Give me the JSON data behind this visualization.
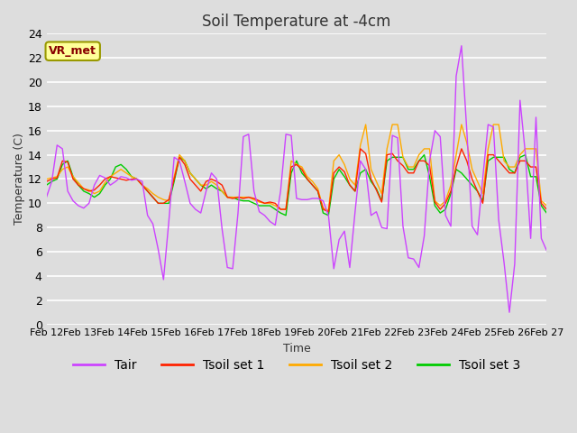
{
  "title": "Soil Temperature at -4cm",
  "xlabel": "Time",
  "ylabel": "Temperature (C)",
  "ylim": [
    0,
    24
  ],
  "yticks": [
    0,
    2,
    4,
    6,
    8,
    10,
    12,
    14,
    16,
    18,
    20,
    22,
    24
  ],
  "x_labels": [
    "Feb 12",
    "Feb 13",
    "Feb 14",
    "Feb 15",
    "Feb 16",
    "Feb 17",
    "Feb 18",
    "Feb 19",
    "Feb 20",
    "Feb 21",
    "Feb 22",
    "Feb 23",
    "Feb 24",
    "Feb 25",
    "Feb 26",
    "Feb 27"
  ],
  "annotation_text": "VR_met",
  "annotation_color": "#880000",
  "annotation_bg": "#ffff99",
  "annotation_edge": "#999900",
  "line_colors": {
    "Tair": "#cc44ff",
    "Tsoil set 1": "#ff2200",
    "Tsoil set 2": "#ffaa00",
    "Tsoil set 3": "#00cc00"
  },
  "bg_color": "#dddddd",
  "plot_bg": "#dddddd",
  "grid_color": "#ffffff",
  "title_fontsize": 12,
  "tick_fontsize": 9,
  "legend_fontsize": 10,
  "Tair": [
    10.5,
    11.8,
    14.8,
    14.5,
    11.0,
    10.2,
    9.8,
    9.6,
    10.0,
    11.5,
    12.3,
    12.1,
    11.5,
    11.8,
    12.2,
    12.1,
    11.9,
    12.0,
    11.8,
    9.0,
    8.3,
    6.2,
    3.7,
    8.5,
    13.8,
    13.5,
    11.8,
    10.0,
    9.5,
    9.2,
    11.0,
    12.5,
    12.0,
    7.9,
    4.7,
    4.6,
    9.2,
    15.5,
    15.7,
    11.0,
    9.3,
    9.0,
    8.5,
    8.2,
    11.0,
    15.7,
    15.6,
    10.4,
    10.3,
    10.3,
    10.4,
    10.4,
    10.2,
    9.0,
    4.6,
    7.0,
    7.7,
    4.7,
    9.3,
    13.5,
    12.8,
    9.0,
    9.3,
    8.0,
    7.9,
    15.6,
    15.4,
    8.1,
    5.5,
    5.4,
    4.7,
    7.3,
    13.5,
    16.0,
    15.5,
    9.0,
    8.1,
    20.5,
    23.0,
    16.0,
    8.1,
    7.4,
    12.1,
    16.5,
    16.3,
    8.6,
    5.1,
    1.0,
    5.0,
    18.5,
    14.1,
    7.1,
    17.1,
    7.1,
    6.1
  ],
  "Tsoil1": [
    11.8,
    12.0,
    12.1,
    13.5,
    13.4,
    12.0,
    11.5,
    11.2,
    11.0,
    11.1,
    11.5,
    12.0,
    12.2,
    12.1,
    12.0,
    11.9,
    12.0,
    12.0,
    11.5,
    11.0,
    10.5,
    10.0,
    10.0,
    10.3,
    12.0,
    13.8,
    13.2,
    12.0,
    11.5,
    11.0,
    11.8,
    12.0,
    11.8,
    11.5,
    10.5,
    10.4,
    10.5,
    10.4,
    10.5,
    10.4,
    10.2,
    10.0,
    10.1,
    10.0,
    9.5,
    9.5,
    13.0,
    13.2,
    12.8,
    12.0,
    11.5,
    11.0,
    9.5,
    9.3,
    12.5,
    13.0,
    12.6,
    11.5,
    11.0,
    14.5,
    14.1,
    12.0,
    11.1,
    10.1,
    14.0,
    14.1,
    13.5,
    13.1,
    12.5,
    12.5,
    13.5,
    13.5,
    13.1,
    10.1,
    9.5,
    10.0,
    11.0,
    13.0,
    14.5,
    13.5,
    12.0,
    11.0,
    10.0,
    14.0,
    14.0,
    13.5,
    13.0,
    12.5,
    12.5,
    13.5,
    13.5,
    13.0,
    13.0,
    10.0,
    9.5
  ],
  "Tsoil2": [
    12.0,
    12.1,
    12.2,
    12.8,
    13.0,
    12.2,
    11.7,
    11.2,
    11.1,
    10.8,
    11.0,
    11.7,
    12.2,
    12.5,
    12.8,
    12.5,
    12.2,
    12.0,
    11.5,
    11.2,
    10.8,
    10.5,
    10.3,
    10.2,
    12.2,
    14.0,
    13.5,
    12.5,
    12.0,
    11.5,
    11.5,
    11.8,
    11.5,
    11.0,
    10.5,
    10.5,
    10.5,
    10.5,
    10.5,
    10.3,
    10.1,
    10.0,
    10.0,
    9.8,
    9.5,
    9.5,
    13.5,
    13.2,
    13.0,
    12.2,
    11.8,
    11.2,
    9.6,
    9.4,
    13.5,
    14.0,
    13.2,
    12.0,
    11.5,
    14.8,
    16.5,
    12.8,
    11.8,
    10.8,
    14.5,
    16.5,
    16.5,
    13.8,
    13.0,
    13.0,
    14.0,
    14.5,
    14.5,
    10.2,
    9.8,
    10.2,
    11.5,
    14.0,
    16.5,
    15.0,
    12.8,
    11.8,
    10.8,
    14.5,
    16.5,
    16.5,
    13.5,
    13.0,
    13.0,
    14.0,
    14.5,
    14.5,
    14.5,
    10.2,
    9.8
  ],
  "Tsoil3": [
    11.5,
    11.8,
    12.0,
    13.2,
    13.5,
    12.2,
    11.5,
    11.0,
    10.8,
    10.5,
    10.8,
    11.5,
    12.0,
    13.0,
    13.2,
    12.8,
    12.2,
    12.0,
    11.5,
    11.0,
    10.5,
    10.0,
    10.0,
    10.0,
    11.8,
    13.8,
    13.5,
    12.5,
    12.0,
    11.5,
    11.2,
    11.5,
    11.2,
    11.0,
    10.5,
    10.5,
    10.3,
    10.2,
    10.2,
    10.0,
    9.8,
    9.8,
    9.8,
    9.5,
    9.2,
    9.0,
    12.5,
    13.5,
    12.5,
    12.0,
    11.5,
    11.0,
    9.2,
    9.0,
    12.0,
    12.8,
    12.2,
    11.5,
    11.0,
    12.5,
    12.8,
    11.8,
    11.2,
    10.2,
    13.5,
    13.8,
    13.8,
    13.8,
    12.8,
    12.8,
    13.5,
    14.0,
    12.2,
    9.8,
    9.2,
    9.5,
    10.8,
    12.8,
    12.5,
    12.0,
    11.5,
    11.0,
    10.2,
    13.5,
    13.8,
    13.8,
    13.8,
    12.8,
    12.5,
    13.8,
    14.0,
    12.2,
    12.2,
    9.8,
    9.2
  ]
}
